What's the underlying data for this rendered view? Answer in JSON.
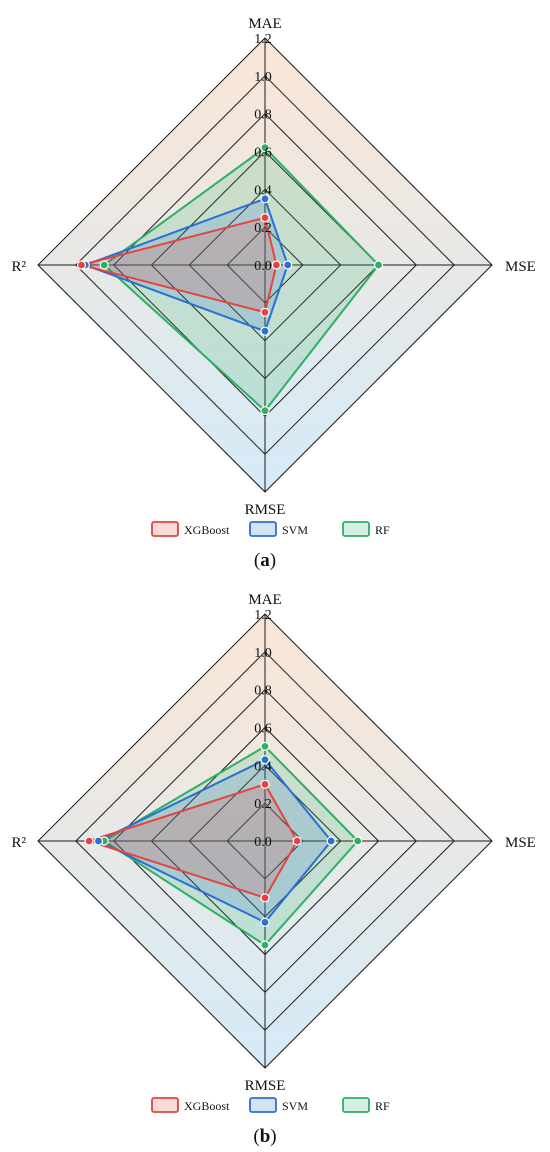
{
  "colors": {
    "grid": "#1a1a1a",
    "bg_top": "#fbe6d6",
    "bg_bottom": "#d5ebf8"
  },
  "chart_data": [
    {
      "type": "radar",
      "caption": "a",
      "axes": [
        "MAE",
        "MSE",
        "RMSE",
        "R²"
      ],
      "ticks": [
        "0.0",
        "0.2",
        "0.4",
        "0.6",
        "0.8",
        "1.0",
        "1.2"
      ],
      "range": [
        0,
        1.2
      ],
      "grid": true,
      "legend_placement": "bottom",
      "series": [
        {
          "name": "XGBoost",
          "color": "#e2453f",
          "values": [
            0.25,
            0.06,
            0.25,
            0.97
          ]
        },
        {
          "name": "SVM",
          "color": "#2a6fd1",
          "values": [
            0.35,
            0.12,
            0.35,
            0.95
          ]
        },
        {
          "name": "RF",
          "color": "#2eaf63",
          "values": [
            0.62,
            0.6,
            0.77,
            0.85
          ]
        }
      ]
    },
    {
      "type": "radar",
      "caption": "b",
      "axes": [
        "MAE",
        "MSE",
        "RMSE",
        "R²"
      ],
      "ticks": [
        "0.0",
        "0.2",
        "0.4",
        "0.6",
        "0.8",
        "1.0",
        "1.2"
      ],
      "range": [
        0,
        1.2
      ],
      "grid": true,
      "legend_placement": "bottom",
      "series": [
        {
          "name": "XGBoost",
          "color": "#e2453f",
          "values": [
            0.3,
            0.17,
            0.3,
            0.93
          ]
        },
        {
          "name": "SVM",
          "color": "#2a6fd1",
          "values": [
            0.43,
            0.35,
            0.43,
            0.88
          ]
        },
        {
          "name": "RF",
          "color": "#2eaf63",
          "values": [
            0.5,
            0.49,
            0.55,
            0.85
          ]
        }
      ]
    }
  ]
}
